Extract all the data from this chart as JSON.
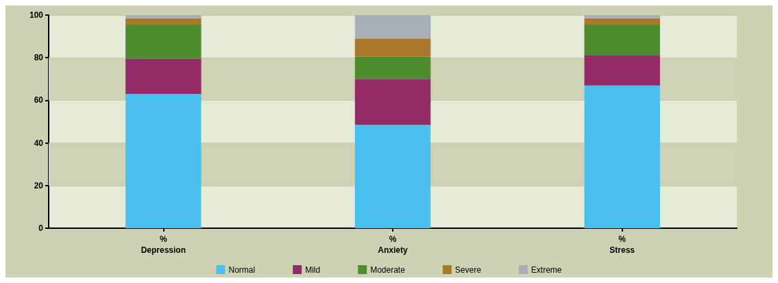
{
  "chart_data": {
    "type": "bar",
    "stacked": true,
    "categories": [
      "%\nDepression",
      "%\nAnxiety",
      "%\nStress"
    ],
    "series": [
      {
        "name": "Normal",
        "color": "#4bc0ee",
        "values": [
          63,
          48.5,
          67
        ]
      },
      {
        "name": "Mild",
        "color": "#922b66",
        "values": [
          16.5,
          21.5,
          14
        ]
      },
      {
        "name": "Moderate",
        "color": "#4f8c2f",
        "values": [
          16,
          10.5,
          14.5
        ]
      },
      {
        "name": "Severe",
        "color": "#a8792b",
        "values": [
          3,
          8.5,
          3
        ]
      },
      {
        "name": "Extreme",
        "color": "#a8aeb5",
        "values": [
          1.5,
          11,
          1.5
        ]
      }
    ],
    "bands": [
      {
        "axis": "y",
        "from": 20,
        "to": 40,
        "color": "#cfd2b4"
      },
      {
        "axis": "y",
        "from": 60,
        "to": 80,
        "color": "#cfd2b4"
      }
    ],
    "ylim": [
      0,
      100
    ],
    "yticks": [
      0,
      20,
      40,
      60,
      80,
      100
    ],
    "grid": "y",
    "legend": "bottom"
  }
}
